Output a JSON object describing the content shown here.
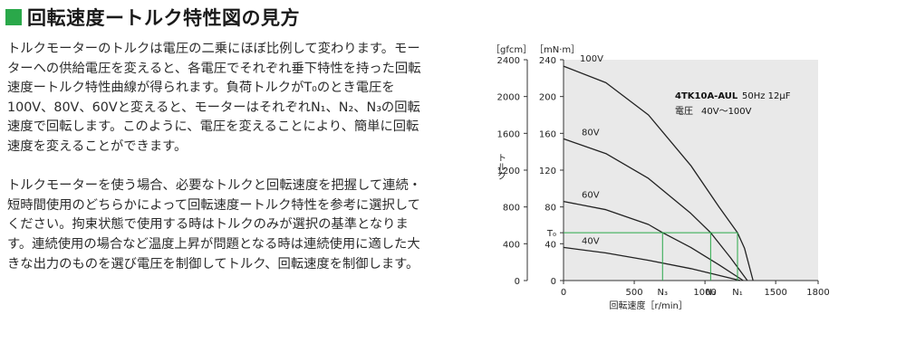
{
  "title": "回転速度ートルク特性図の見方",
  "body": {
    "paragraph1": "トルクモーターのトルクは電圧の二乗にほぼ比例して変わります。モーターへの供給電圧を変えると、各電圧でそれぞれ垂下特性を持った回転速度ートルク特性曲線が得られます。負荷トルクがT₀のとき電圧を100V、80V、60Vと変えると、モーターはそれぞれN₁、N₂、N₃の回転速度で回転します。このように、電圧を変えることにより、簡単に回転速度を変えることができます。",
    "paragraph2": "トルクモーターを使う場合、必要なトルクと回転速度を把握して連続・短時間使用のどちらかによって回転速度ートルク特性を参考に選択してください。拘束状態で使用する時はトルクのみが選択の基準となります。連続使用の場合など温度上昇が問題となる時は連続使用に適した大きな出力のものを選び電圧を制御してトルク、回転速度を制御します。"
  },
  "chart_data": {
    "type": "line",
    "model_label": "4TK10A-AUL",
    "spec": "50Hz 12μF",
    "voltage_label": "電圧",
    "voltage_range": "40V〜100V",
    "xlabel": "回転速度［r/min］",
    "ylabel": "トルク",
    "unit_gfcm": "［gfcm］",
    "unit_mnm": "［mN·m］",
    "xlim": [
      0,
      1800
    ],
    "ylim_mnm": [
      0,
      240
    ],
    "x_ticks": [
      "0",
      "500",
      "1000",
      "1500",
      "1800"
    ],
    "y_ticks_gfcm": [
      "0",
      "400",
      "800",
      "1200",
      "1600",
      "2000",
      "2400"
    ],
    "y_ticks_mnm": [
      "0",
      "40",
      "80",
      "120",
      "160",
      "200",
      "240"
    ],
    "t0_label": "T₀",
    "t0_mnm": 52,
    "n_labels": [
      "N₃",
      "N₂",
      "N₁"
    ],
    "n_values": [
      700,
      1040,
      1230
    ],
    "series": [
      {
        "name": "100V",
        "x": [
          0,
          300,
          600,
          900,
          1100,
          1230,
          1280,
          1340
        ],
        "y": [
          233,
          215,
          180,
          125,
          80,
          52,
          35,
          0
        ]
      },
      {
        "name": "80V",
        "x": [
          0,
          300,
          600,
          900,
          1040,
          1180,
          1300
        ],
        "y": [
          154,
          138,
          111,
          73,
          52,
          25,
          0
        ]
      },
      {
        "name": "60V",
        "x": [
          0,
          300,
          600,
          700,
          900,
          1100,
          1270
        ],
        "y": [
          86,
          77,
          61,
          52,
          36,
          17,
          0
        ]
      },
      {
        "name": "40V",
        "x": [
          0,
          300,
          600,
          900,
          1250
        ],
        "y": [
          36,
          30,
          22,
          13,
          0
        ]
      }
    ]
  }
}
